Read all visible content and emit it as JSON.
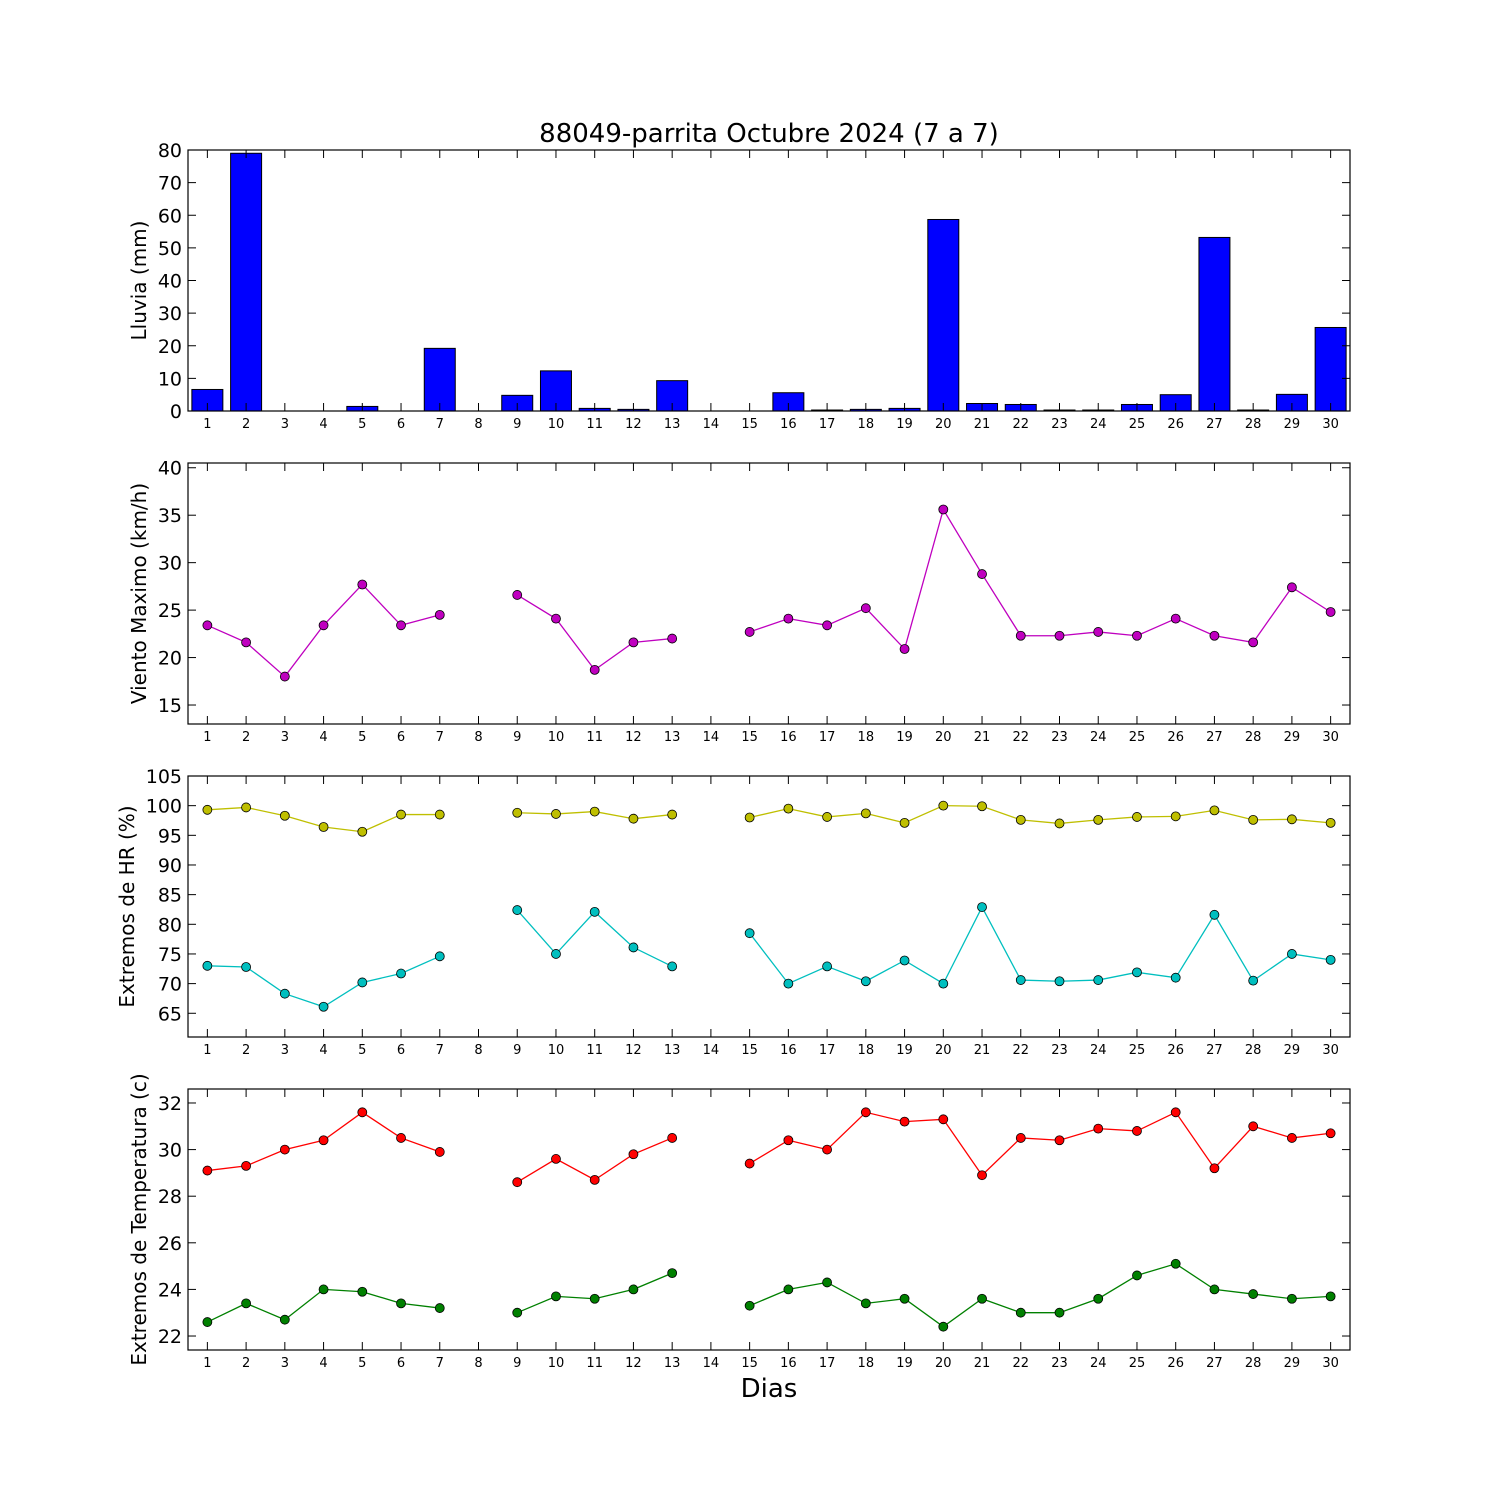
{
  "chart_data": {
    "title": "88049-parrita Octubre 2024  (7 a 7)",
    "xlabel": "Dias",
    "categories": [
      "1",
      "2",
      "3",
      "4",
      "5",
      "6",
      "7",
      "8",
      "9",
      "10",
      "11",
      "12",
      "13",
      "14",
      "15",
      "16",
      "17",
      "18",
      "19",
      "20",
      "21",
      "22",
      "23",
      "24",
      "25",
      "26",
      "27",
      "28",
      "29",
      "30"
    ],
    "panels": [
      {
        "type": "bar",
        "ylabel": "Lluvia (mm)",
        "ylim": [
          0,
          80
        ],
        "yticks": [
          0,
          10,
          20,
          30,
          40,
          50,
          60,
          70,
          80
        ],
        "series": [
          {
            "color": "#0000ff",
            "values": [
              6.6,
              79,
              0,
              0,
              1.4,
              0,
              19.2,
              null,
              4.8,
              12.3,
              0.8,
              0.5,
              9.3,
              null,
              0,
              5.6,
              0.3,
              0.5,
              0.8,
              58.7,
              2.3,
              2.0,
              0.3,
              0.3,
              2.0,
              5.0,
              53.2,
              0.3,
              5.1,
              25.6
            ]
          }
        ]
      },
      {
        "type": "line",
        "ylabel": "Viento Maximo (km/h)",
        "ylim": [
          13,
          40.5
        ],
        "yticks": [
          15,
          20,
          25,
          30,
          35,
          40
        ],
        "series": [
          {
            "color": "#bf00bf",
            "values": [
              23.4,
              21.6,
              18.0,
              23.4,
              27.7,
              23.4,
              24.5,
              null,
              26.6,
              24.1,
              18.7,
              21.6,
              22.0,
              null,
              22.7,
              24.1,
              23.4,
              25.2,
              20.9,
              35.6,
              28.8,
              22.3,
              22.3,
              22.7,
              22.3,
              24.1,
              22.3,
              21.6,
              27.4,
              24.8
            ]
          }
        ]
      },
      {
        "type": "line",
        "ylabel": "Extremos de HR (%)",
        "ylim": [
          61,
          105
        ],
        "yticks": [
          65,
          70,
          75,
          80,
          85,
          90,
          95,
          100,
          105
        ],
        "series": [
          {
            "color": "#bfbf00",
            "values": [
              99.3,
              99.7,
              98.3,
              96.4,
              95.6,
              98.5,
              98.5,
              null,
              98.8,
              98.6,
              99.0,
              97.8,
              98.5,
              null,
              98.0,
              99.5,
              98.1,
              98.7,
              97.1,
              100.0,
              99.9,
              97.6,
              97.0,
              97.6,
              98.1,
              98.2,
              99.2,
              97.6,
              97.7,
              97.1
            ]
          },
          {
            "color": "#00bfbf",
            "values": [
              73.0,
              72.8,
              68.3,
              66.1,
              70.2,
              71.7,
              74.6,
              null,
              82.4,
              75.0,
              82.1,
              76.1,
              72.9,
              null,
              78.5,
              70.0,
              72.9,
              70.4,
              73.9,
              70.0,
              82.9,
              70.6,
              70.4,
              70.6,
              71.9,
              71.0,
              81.6,
              70.5,
              75.0,
              74.0
            ]
          }
        ]
      },
      {
        "type": "line",
        "ylabel": "Extremos de Temperatura (c)",
        "ylim": [
          21.4,
          32.6
        ],
        "yticks": [
          22,
          24,
          26,
          28,
          30,
          32
        ],
        "series": [
          {
            "color": "#ff0000",
            "values": [
              29.1,
              29.3,
              30.0,
              30.4,
              31.6,
              30.5,
              29.9,
              null,
              28.6,
              29.6,
              28.7,
              29.8,
              30.5,
              null,
              29.4,
              30.4,
              30.0,
              31.6,
              31.2,
              31.3,
              28.9,
              30.5,
              30.4,
              30.9,
              30.8,
              31.6,
              29.2,
              31.0,
              30.5,
              30.7
            ]
          },
          {
            "color": "#008000",
            "values": [
              22.6,
              23.4,
              22.7,
              24.0,
              23.9,
              23.4,
              23.2,
              null,
              23.0,
              23.7,
              23.6,
              24.0,
              24.7,
              null,
              23.3,
              24.0,
              24.3,
              23.4,
              23.6,
              22.4,
              23.6,
              23.0,
              23.0,
              23.6,
              24.6,
              25.1,
              24.0,
              23.8,
              23.6,
              23.7
            ]
          }
        ]
      }
    ]
  }
}
